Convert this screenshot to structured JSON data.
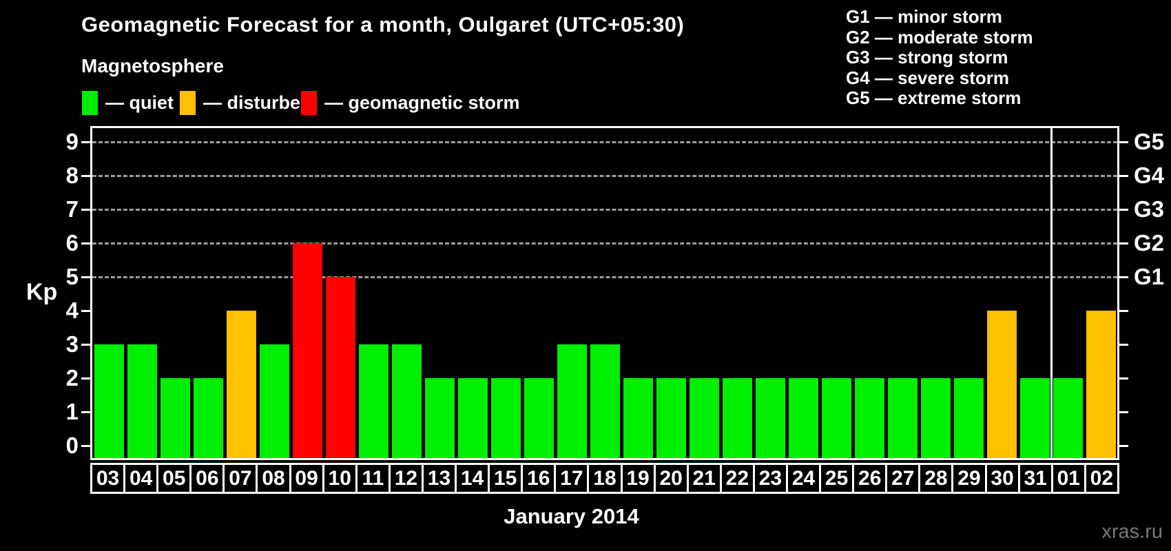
{
  "header": {
    "title": "Geomagnetic Forecast for a month, Oulgaret (UTC+05:30)"
  },
  "legend": {
    "heading": "Magnetosphere",
    "items": [
      {
        "status": "quiet",
        "label": "— quiet",
        "color": "#00ee00"
      },
      {
        "status": "disturbed",
        "label": "— disturbed",
        "color": "#ffc000"
      },
      {
        "status": "storm",
        "label": "— geomagnetic storm",
        "color": "#ff0000"
      }
    ]
  },
  "storm_scale": [
    "G1 — minor storm",
    "G2 — moderate storm",
    "G3 — strong storm",
    "G4 — severe storm",
    "G5 — extreme storm"
  ],
  "watermark": "xras.ru",
  "chart_data": {
    "type": "bar",
    "title": "Geomagnetic Forecast for a month, Oulgaret (UTC+05:30)",
    "xlabel": "January 2014",
    "ylabel": "Kp",
    "ylim": [
      0,
      9
    ],
    "yticks": [
      0,
      1,
      2,
      3,
      4,
      5,
      6,
      7,
      8,
      9
    ],
    "grid": "dashed horizontal lines at Kp 5-9 only",
    "gridlines_at": [
      5,
      6,
      7,
      8,
      9
    ],
    "right_axis_labels": [
      {
        "value": 5,
        "label": "G1"
      },
      {
        "value": 6,
        "label": "G2"
      },
      {
        "value": 7,
        "label": "G3"
      },
      {
        "value": 8,
        "label": "G4"
      },
      {
        "value": 9,
        "label": "G5"
      }
    ],
    "legend_position": "top-left",
    "categories": [
      "03",
      "04",
      "05",
      "06",
      "07",
      "08",
      "09",
      "10",
      "11",
      "12",
      "13",
      "14",
      "15",
      "16",
      "17",
      "18",
      "19",
      "20",
      "21",
      "22",
      "23",
      "24",
      "25",
      "26",
      "27",
      "28",
      "29",
      "30",
      "31",
      "01",
      "02"
    ],
    "values": [
      3,
      3,
      2,
      2,
      4,
      3,
      6,
      5,
      3,
      3,
      2,
      2,
      2,
      2,
      3,
      3,
      2,
      2,
      2,
      2,
      2,
      2,
      2,
      2,
      2,
      2,
      2,
      4,
      2,
      2,
      4
    ],
    "statuses": [
      "quiet",
      "quiet",
      "quiet",
      "quiet",
      "disturbed",
      "quiet",
      "storm",
      "storm",
      "quiet",
      "quiet",
      "quiet",
      "quiet",
      "quiet",
      "quiet",
      "quiet",
      "quiet",
      "quiet",
      "quiet",
      "quiet",
      "quiet",
      "quiet",
      "quiet",
      "quiet",
      "quiet",
      "quiet",
      "quiet",
      "quiet",
      "disturbed",
      "quiet",
      "quiet",
      "disturbed"
    ],
    "status_colors": {
      "quiet": "#00ee00",
      "disturbed": "#ffc000",
      "storm": "#ff0000"
    },
    "month_separator_after_index": 28,
    "month_label_span": [
      0,
      28
    ]
  }
}
